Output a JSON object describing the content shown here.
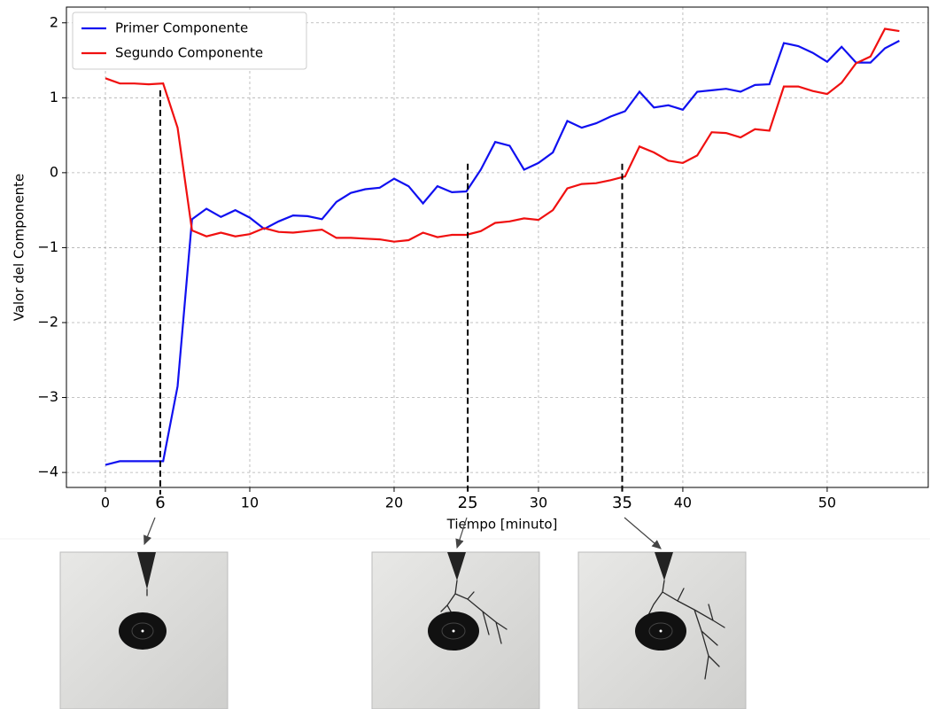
{
  "chart_data": {
    "type": "line",
    "x_label": "Tiempo [minuto]",
    "y_label": "Valor del Componente",
    "x": [
      0,
      1,
      2,
      3,
      4,
      5,
      6,
      7,
      8,
      9,
      10,
      11,
      12,
      13,
      14,
      15,
      16,
      17,
      18,
      19,
      20,
      21,
      22,
      23,
      24,
      25,
      26,
      27,
      28,
      29,
      30,
      31,
      32,
      33,
      34,
      35,
      36,
      37,
      38,
      39,
      40,
      41,
      42,
      43,
      44,
      45,
      46,
      47,
      48,
      49,
      50,
      51,
      52,
      53,
      54,
      55
    ],
    "series": [
      {
        "name": "Primer Componente",
        "color": "#1010f0",
        "values": [
          -3.9,
          -3.85,
          -3.85,
          -3.85,
          -3.85,
          -2.85,
          -0.62,
          -0.48,
          -0.59,
          -0.5,
          -0.6,
          -0.75,
          -0.65,
          -0.57,
          -0.58,
          -0.62,
          -0.39,
          -0.27,
          -0.22,
          -0.2,
          -0.08,
          -0.18,
          -0.41,
          -0.18,
          -0.26,
          -0.25,
          0.04,
          0.41,
          0.36,
          0.04,
          0.13,
          0.27,
          0.69,
          0.6,
          0.66,
          0.75,
          0.82,
          1.08,
          0.87,
          0.9,
          0.84,
          1.08,
          1.1,
          1.12,
          1.08,
          1.17,
          1.18,
          1.73,
          1.69,
          1.6,
          1.48,
          1.68,
          1.47,
          1.47,
          1.66,
          1.76
        ]
      },
      {
        "name": "Segundo Componente",
        "color": "#f01010",
        "values": [
          1.26,
          1.19,
          1.19,
          1.18,
          1.19,
          0.6,
          -0.77,
          -0.85,
          -0.8,
          -0.85,
          -0.82,
          -0.74,
          -0.79,
          -0.8,
          -0.78,
          -0.76,
          -0.87,
          -0.87,
          -0.88,
          -0.89,
          -0.92,
          -0.9,
          -0.8,
          -0.86,
          -0.83,
          -0.83,
          -0.78,
          -0.67,
          -0.65,
          -0.61,
          -0.63,
          -0.5,
          -0.21,
          -0.15,
          -0.14,
          -0.1,
          -0.05,
          0.35,
          0.27,
          0.16,
          0.13,
          0.23,
          0.54,
          0.53,
          0.47,
          0.58,
          0.56,
          1.15,
          1.15,
          1.09,
          1.05,
          1.2,
          1.46,
          1.55,
          1.92,
          1.89
        ]
      }
    ],
    "xlim": [
      -2.7,
      57
    ],
    "ylim": [
      -4.2,
      2.21
    ],
    "xticks": [
      0,
      10,
      20,
      30,
      40,
      50
    ],
    "yticks": [
      {
        "value": -4,
        "label": "−4"
      },
      {
        "value": -3,
        "label": "−3"
      },
      {
        "value": -2,
        "label": "−2"
      },
      {
        "value": -1,
        "label": "−1"
      },
      0,
      1,
      2
    ],
    "grid": true,
    "legend": "upper left",
    "annotations": [
      {
        "label": "6",
        "x": 3.8,
        "y": 1.1
      },
      {
        "label": "25",
        "x": 25.1,
        "y": 0.12
      },
      {
        "label": "35",
        "x": 35.8,
        "y": 0.12
      }
    ]
  }
}
